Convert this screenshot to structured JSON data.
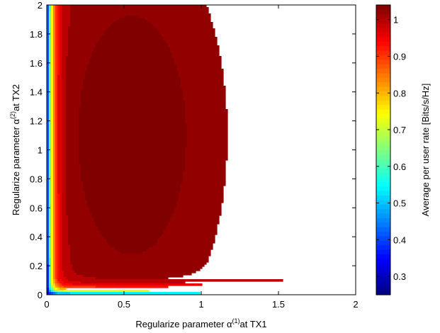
{
  "chart_data": {
    "type": "heatmap",
    "subtype": "filled-contour",
    "title": "",
    "xlabel": {
      "prefix": "Regularize parameter ",
      "symbol": "α",
      "superscript": "(1)",
      "suffix": "at TX1"
    },
    "ylabel": {
      "prefix": "Regularize parameter ",
      "symbol": "α",
      "superscript": "(2)",
      "suffix": "at TX2"
    },
    "colorbar_label": "Average per user rate [Bits/s/Hz]",
    "xlim": [
      0,
      2
    ],
    "ylim": [
      0,
      2
    ],
    "x_ticks": [
      0,
      0.5,
      1,
      1.5,
      2
    ],
    "x_tick_labels": [
      "0",
      "0.5",
      "1",
      "1.5",
      "2"
    ],
    "y_ticks": [
      0,
      0.2,
      0.4,
      0.6,
      0.8,
      1,
      1.2,
      1.4,
      1.6,
      1.8,
      2
    ],
    "y_tick_labels": [
      "0",
      "0.2",
      "0.4",
      "0.6",
      "0.8",
      "1",
      "1.2",
      "1.4",
      "1.6",
      "1.8",
      "2"
    ],
    "clim": [
      0.25,
      1.04
    ],
    "colorbar_ticks": [
      0.3,
      0.4,
      0.5,
      0.6,
      0.7,
      0.8,
      0.9,
      1
    ],
    "colorbar_tick_labels": [
      "0.3",
      "0.4",
      "0.5",
      "0.6",
      "0.7",
      "0.8",
      "0.9",
      "1"
    ],
    "colormap": "jet",
    "peak": {
      "x": 0.55,
      "y": 1.1,
      "value": 1.04
    },
    "max_region_lower_bound": {
      "x": 0.5,
      "y": 0.57
    },
    "grid": false,
    "colorbar_position": "right"
  }
}
